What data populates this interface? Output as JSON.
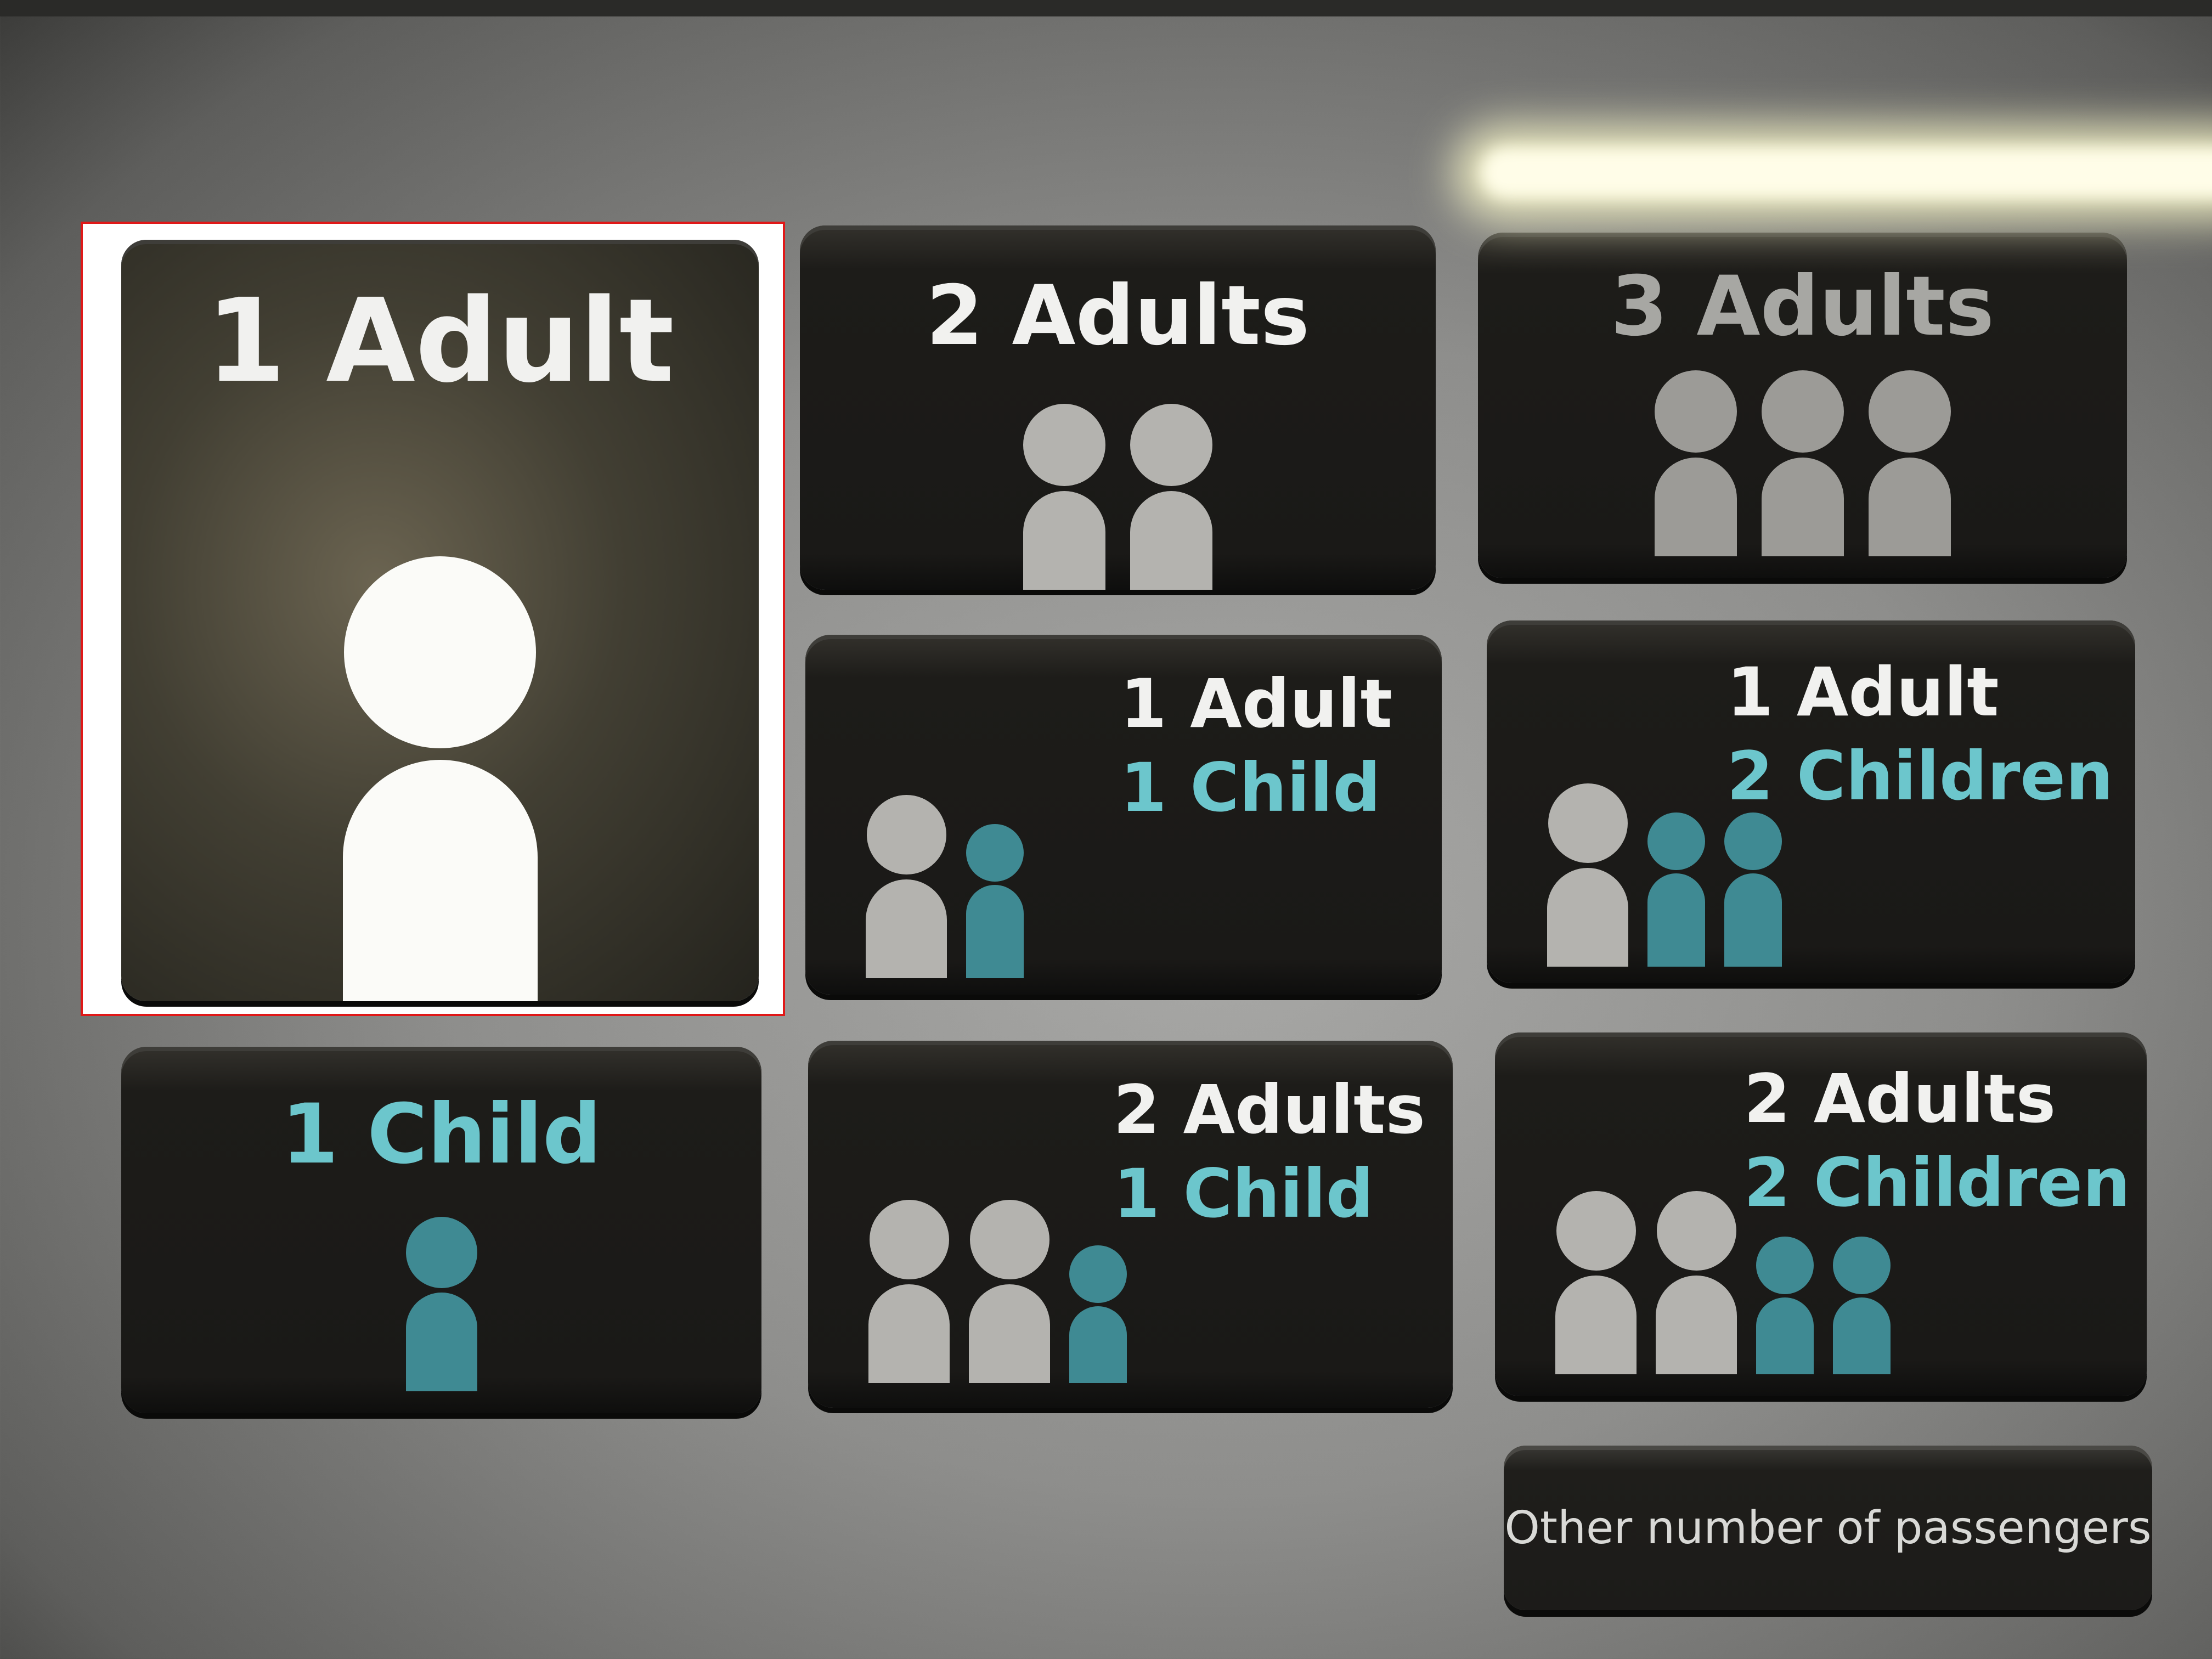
{
  "colors": {
    "adult_figure": "#b4b3af",
    "child_figure": "#3f8a93",
    "adult_text": "#f1f1ef",
    "child_text": "#6cc6cc",
    "selection_highlight": "#e01818"
  },
  "selected_option": "1 Adult",
  "options": [
    {
      "id": "1a",
      "lines": [
        {
          "text": "1 Adult",
          "kind": "adult"
        }
      ],
      "figures": [
        "adult"
      ]
    },
    {
      "id": "2a",
      "lines": [
        {
          "text": "2 Adults",
          "kind": "adult"
        }
      ],
      "figures": [
        "adult",
        "adult"
      ]
    },
    {
      "id": "3a",
      "lines": [
        {
          "text": "3 Adults",
          "kind": "adult"
        }
      ],
      "figures": [
        "adult",
        "adult",
        "adult"
      ]
    },
    {
      "id": "1a1c",
      "lines": [
        {
          "text": "1 Adult",
          "kind": "adult"
        },
        {
          "text": "1 Child",
          "kind": "child"
        }
      ],
      "figures": [
        "adult",
        "child"
      ]
    },
    {
      "id": "1a2c",
      "lines": [
        {
          "text": "1 Adult",
          "kind": "adult"
        },
        {
          "text": "2 Children",
          "kind": "child"
        }
      ],
      "figures": [
        "adult",
        "child",
        "child"
      ]
    },
    {
      "id": "1c",
      "lines": [
        {
          "text": "1 Child",
          "kind": "child"
        }
      ],
      "figures": [
        "child"
      ]
    },
    {
      "id": "2a1c",
      "lines": [
        {
          "text": "2 Adults",
          "kind": "adult"
        },
        {
          "text": "1 Child",
          "kind": "child"
        }
      ],
      "figures": [
        "adult",
        "adult",
        "child"
      ]
    },
    {
      "id": "2a2c",
      "lines": [
        {
          "text": "2 Adults",
          "kind": "adult"
        },
        {
          "text": "2 Children",
          "kind": "child"
        }
      ],
      "figures": [
        "adult",
        "adult",
        "child",
        "child"
      ]
    }
  ],
  "other_button": {
    "label": "Other number of passengers"
  }
}
